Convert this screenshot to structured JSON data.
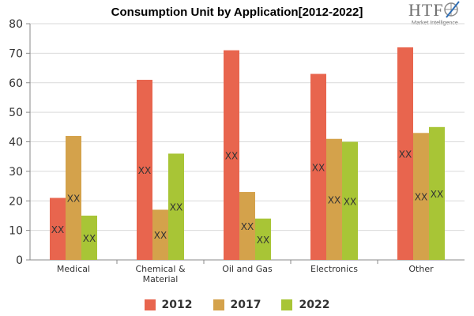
{
  "logo": {
    "mark": "HTF",
    "tagline": "Market Intelligence"
  },
  "chart_data": {
    "type": "bar",
    "title": "Consumption Unit by  Application[2012-2022]",
    "xlabel": "",
    "ylabel": "",
    "ylim": [
      0,
      80
    ],
    "yticks": [
      0,
      10,
      20,
      30,
      40,
      50,
      60,
      70,
      80
    ],
    "grid": true,
    "legend_position": "bottom",
    "categories": [
      [
        "Medical"
      ],
      [
        "Chemical &",
        "Material"
      ],
      [
        "Oil and Gas"
      ],
      [
        "Electronics"
      ],
      [
        "Other"
      ]
    ],
    "series": [
      {
        "name": "2012",
        "color": "#e8654e",
        "values": [
          21,
          61,
          71,
          63,
          72
        ],
        "data_labels": [
          "XX",
          "XX",
          "XX",
          "XX",
          "XX"
        ]
      },
      {
        "name": "2017",
        "color": "#d4a24b",
        "values": [
          42,
          17,
          23,
          41,
          43
        ],
        "data_labels": [
          "XX",
          "XX",
          "XX",
          "XX",
          "XX"
        ]
      },
      {
        "name": "2022",
        "color": "#a8c536",
        "values": [
          15,
          36,
          14,
          40,
          45
        ],
        "data_labels": [
          "XX",
          "XX",
          "XX",
          "XX",
          "XX"
        ]
      }
    ]
  }
}
